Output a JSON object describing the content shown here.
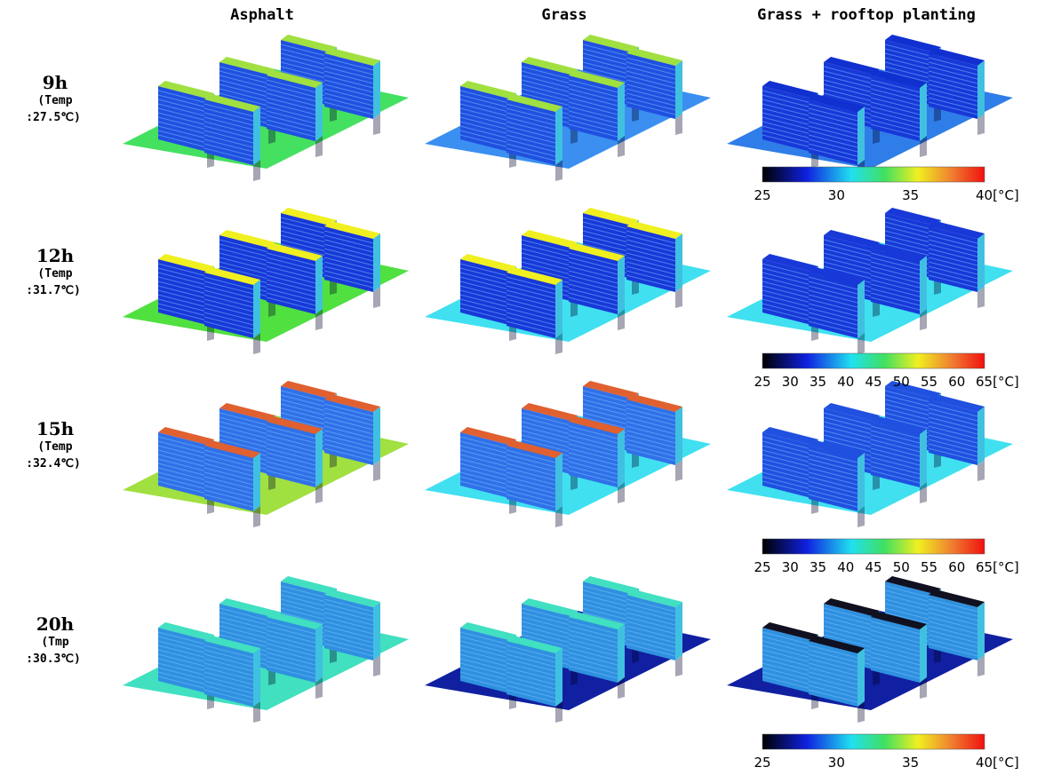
{
  "columns": [
    "Asphalt",
    "Grass",
    "Grass + rooftop planting"
  ],
  "rows": [
    {
      "time": "9h",
      "temp_label": "(Temp",
      "temp": ":27.5℃)"
    },
    {
      "time": "12h",
      "temp_label": "(Temp",
      "temp": ":31.7℃)"
    },
    {
      "time": "15h",
      "temp_label": "(Temp",
      "temp": ":32.4℃)"
    },
    {
      "time": "20h",
      "temp_label": "(Tmp",
      "temp": ":30.3℃)"
    }
  ],
  "colorbars": [
    {
      "ticks": [
        "25",
        "30",
        "35",
        "40[°C]"
      ]
    },
    {
      "ticks": [
        "25",
        "30",
        "35",
        "40",
        "45",
        "50",
        "55",
        "60",
        "65[°C]"
      ]
    },
    {
      "ticks": [
        "25",
        "30",
        "35",
        "40",
        "45",
        "50",
        "55",
        "60",
        "65[°C]"
      ]
    },
    {
      "ticks": [
        "25",
        "30",
        "35",
        "40[°C]"
      ]
    }
  ]
}
